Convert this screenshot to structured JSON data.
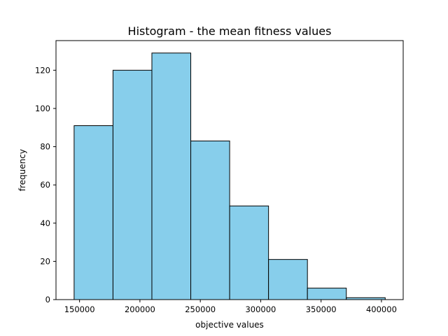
{
  "chart_data": {
    "type": "bar",
    "title": "Histogram - the mean fitness values",
    "xlabel": "objective values",
    "ylabel": "frequency",
    "bins": [
      {
        "start": 145500,
        "end": 177700,
        "count": 91
      },
      {
        "start": 177700,
        "end": 209900,
        "count": 120
      },
      {
        "start": 209900,
        "end": 242100,
        "count": 129
      },
      {
        "start": 242100,
        "end": 274300,
        "count": 83
      },
      {
        "start": 274300,
        "end": 306500,
        "count": 49
      },
      {
        "start": 306500,
        "end": 338700,
        "count": 21
      },
      {
        "start": 338700,
        "end": 370900,
        "count": 6
      },
      {
        "start": 370900,
        "end": 403100,
        "count": 1
      }
    ],
    "xlim": [
      130500,
      418000
    ],
    "ylim": [
      0,
      135.5
    ],
    "xticks": [
      150000,
      200000,
      250000,
      300000,
      350000,
      400000
    ],
    "yticks": [
      0,
      20,
      40,
      60,
      80,
      100,
      120
    ],
    "grid": false,
    "bar_color": "#87ceeb",
    "edge_color": "#000000"
  }
}
